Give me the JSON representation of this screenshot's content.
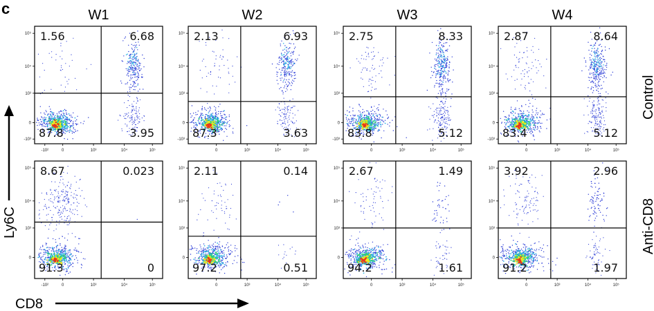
{
  "panel_letter": "c",
  "column_headers": [
    "W1",
    "W2",
    "W3",
    "W4"
  ],
  "row_labels": [
    "Control",
    "Anti-CD8"
  ],
  "y_axis_label": "Ly6C",
  "x_axis_label": "CD8",
  "chart_data": {
    "type": "scatter",
    "subtype": "flow-cytometry-density-plot",
    "x_ticks": [
      "-10²",
      "0",
      "10³",
      "10⁴",
      "10⁵"
    ],
    "y_ticks": [
      "10⁵",
      "10⁴",
      "10³",
      "0",
      "-10³"
    ],
    "panels": [
      {
        "row": "Control",
        "column": "W1",
        "quadrants": {
          "upper_left": "1.56",
          "upper_right": "6.68",
          "lower_left": "87.8",
          "lower_right": "3.95"
        }
      },
      {
        "row": "Control",
        "column": "W2",
        "quadrants": {
          "upper_left": "2.13",
          "upper_right": "6.93",
          "lower_left": "87.3",
          "lower_right": "3.63"
        }
      },
      {
        "row": "Control",
        "column": "W3",
        "quadrants": {
          "upper_left": "2.75",
          "upper_right": "8.33",
          "lower_left": "83.8",
          "lower_right": "5.12"
        }
      },
      {
        "row": "Control",
        "column": "W4",
        "quadrants": {
          "upper_left": "2.87",
          "upper_right": "8.64",
          "lower_left": "83.4",
          "lower_right": "5.12"
        }
      },
      {
        "row": "Anti-CD8",
        "column": "W1",
        "quadrants": {
          "upper_left": "8.67",
          "upper_right": "0.023",
          "lower_left": "91.3",
          "lower_right": "0"
        }
      },
      {
        "row": "Anti-CD8",
        "column": "W2",
        "quadrants": {
          "upper_left": "2.11",
          "upper_right": "0.14",
          "lower_left": "97.2",
          "lower_right": "0.51"
        }
      },
      {
        "row": "Anti-CD8",
        "column": "W3",
        "quadrants": {
          "upper_left": "2.67",
          "upper_right": "1.49",
          "lower_left": "94.2",
          "lower_right": "1.61"
        }
      },
      {
        "row": "Anti-CD8",
        "column": "W4",
        "quadrants": {
          "upper_left": "3.92",
          "upper_right": "2.96",
          "lower_left": "91.2",
          "lower_right": "1.97"
        }
      }
    ],
    "colors": {
      "low_density": "#2a3bd6",
      "mid_density": "#2fd17a",
      "high_density": "#f2e81c",
      "peak_density": "#e8341c"
    }
  }
}
